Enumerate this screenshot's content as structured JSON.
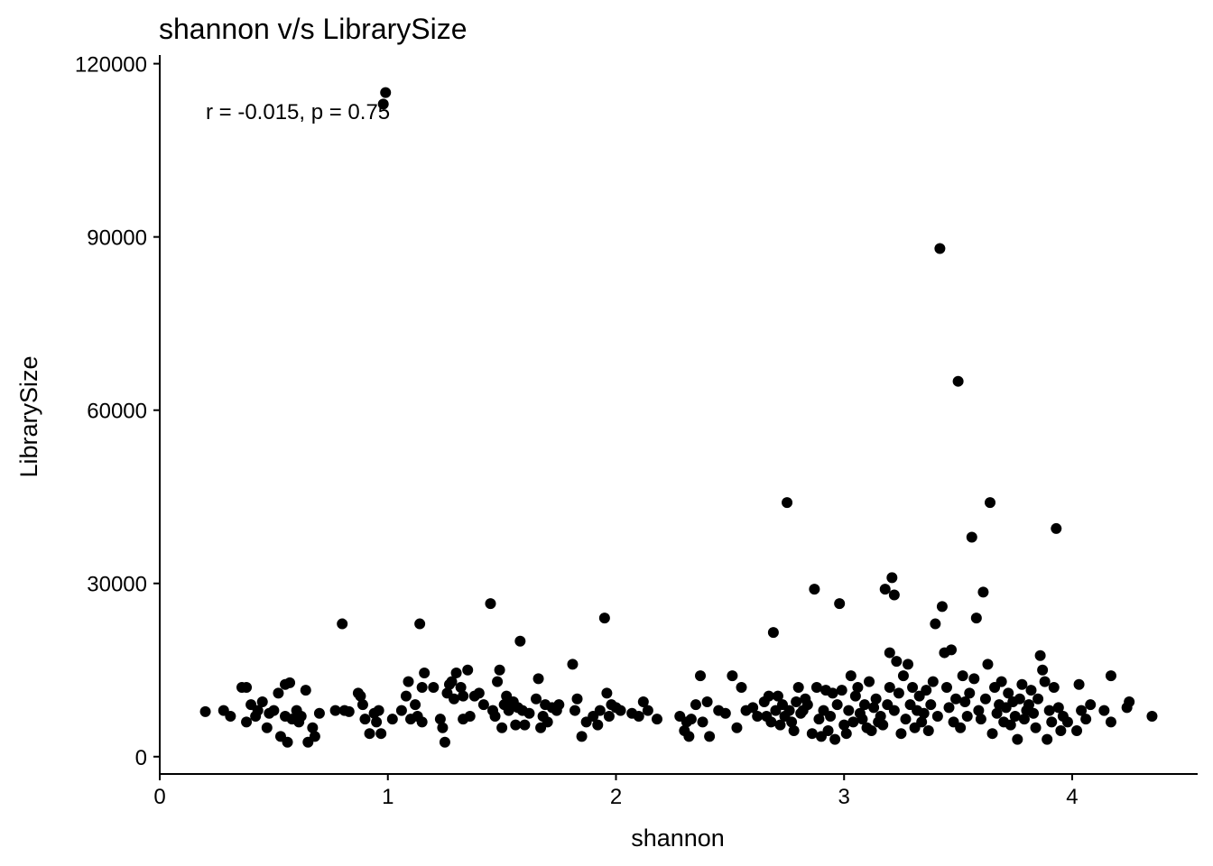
{
  "chart_data": {
    "type": "scatter",
    "title": "shannon v/s LibrarySize",
    "xlabel": "shannon",
    "ylabel": "LibrarySize",
    "xlim": [
      0,
      4.55
    ],
    "ylim": [
      -3000,
      121500
    ],
    "x_ticks": [
      0,
      1,
      2,
      3,
      4
    ],
    "y_ticks": [
      0,
      30000,
      60000,
      90000,
      120000
    ],
    "x_tick_labels": [
      "0",
      "1",
      "2",
      "3",
      "4"
    ],
    "y_tick_labels": [
      "0",
      "30000",
      "60000",
      "90000",
      "120000"
    ],
    "grid": false,
    "annotation": "r = -0.015, p = 0.75",
    "marker_color": "#000000",
    "points": [
      [
        0.2,
        7800
      ],
      [
        0.28,
        8000
      ],
      [
        0.31,
        7000
      ],
      [
        0.36,
        12000
      ],
      [
        0.38,
        12000
      ],
      [
        0.38,
        6000
      ],
      [
        0.4,
        9000
      ],
      [
        0.42,
        7000
      ],
      [
        0.43,
        8000
      ],
      [
        0.45,
        9500
      ],
      [
        0.47,
        5000
      ],
      [
        0.48,
        7500
      ],
      [
        0.5,
        8000
      ],
      [
        0.52,
        11000
      ],
      [
        0.53,
        3500
      ],
      [
        0.55,
        7000
      ],
      [
        0.55,
        12500
      ],
      [
        0.56,
        2500
      ],
      [
        0.57,
        12800
      ],
      [
        0.58,
        6500
      ],
      [
        0.6,
        8000
      ],
      [
        0.61,
        6000
      ],
      [
        0.62,
        7000
      ],
      [
        0.64,
        11500
      ],
      [
        0.65,
        2500
      ],
      [
        0.67,
        5000
      ],
      [
        0.68,
        3500
      ],
      [
        0.7,
        7500
      ],
      [
        0.77,
        8000
      ],
      [
        0.8,
        23000
      ],
      [
        0.81,
        8000
      ],
      [
        0.83,
        7800
      ],
      [
        0.87,
        11000
      ],
      [
        0.88,
        10500
      ],
      [
        0.89,
        9000
      ],
      [
        0.9,
        6500
      ],
      [
        0.92,
        4000
      ],
      [
        0.94,
        7500
      ],
      [
        0.95,
        6000
      ],
      [
        0.96,
        8000
      ],
      [
        0.97,
        4000
      ],
      [
        0.98,
        113000
      ],
      [
        0.99,
        115000
      ],
      [
        1.02,
        6500
      ],
      [
        1.06,
        8000
      ],
      [
        1.08,
        10500
      ],
      [
        1.09,
        13000
      ],
      [
        1.1,
        6500
      ],
      [
        1.12,
        9000
      ],
      [
        1.13,
        7000
      ],
      [
        1.14,
        23000
      ],
      [
        1.15,
        12000
      ],
      [
        1.15,
        6000
      ],
      [
        1.16,
        14500
      ],
      [
        1.2,
        12000
      ],
      [
        1.23,
        6500
      ],
      [
        1.24,
        5000
      ],
      [
        1.25,
        2500
      ],
      [
        1.26,
        11000
      ],
      [
        1.27,
        12500
      ],
      [
        1.28,
        13000
      ],
      [
        1.29,
        10000
      ],
      [
        1.3,
        14500
      ],
      [
        1.32,
        12000
      ],
      [
        1.33,
        10500
      ],
      [
        1.33,
        6500
      ],
      [
        1.35,
        15000
      ],
      [
        1.36,
        7000
      ],
      [
        1.38,
        10500
      ],
      [
        1.4,
        11000
      ],
      [
        1.42,
        9000
      ],
      [
        1.45,
        26500
      ],
      [
        1.46,
        8000
      ],
      [
        1.47,
        7000
      ],
      [
        1.48,
        13000
      ],
      [
        1.49,
        15000
      ],
      [
        1.5,
        5000
      ],
      [
        1.51,
        9000
      ],
      [
        1.52,
        10500
      ],
      [
        1.53,
        8000
      ],
      [
        1.55,
        9500
      ],
      [
        1.56,
        5500
      ],
      [
        1.57,
        8500
      ],
      [
        1.58,
        20000
      ],
      [
        1.59,
        8000
      ],
      [
        1.6,
        5500
      ],
      [
        1.62,
        7500
      ],
      [
        1.65,
        10000
      ],
      [
        1.66,
        13500
      ],
      [
        1.67,
        5000
      ],
      [
        1.68,
        7000
      ],
      [
        1.69,
        9000
      ],
      [
        1.7,
        6000
      ],
      [
        1.72,
        8500
      ],
      [
        1.74,
        8000
      ],
      [
        1.75,
        9000
      ],
      [
        1.81,
        16000
      ],
      [
        1.82,
        8000
      ],
      [
        1.83,
        10000
      ],
      [
        1.85,
        3500
      ],
      [
        1.87,
        6000
      ],
      [
        1.9,
        7000
      ],
      [
        1.92,
        5500
      ],
      [
        1.93,
        8000
      ],
      [
        1.95,
        24000
      ],
      [
        1.96,
        11000
      ],
      [
        1.97,
        7000
      ],
      [
        1.98,
        9000
      ],
      [
        2.0,
        8500
      ],
      [
        2.02,
        8000
      ],
      [
        2.07,
        7500
      ],
      [
        2.1,
        7000
      ],
      [
        2.12,
        9500
      ],
      [
        2.14,
        8000
      ],
      [
        2.18,
        6500
      ],
      [
        2.28,
        7000
      ],
      [
        2.3,
        4500
      ],
      [
        2.31,
        6000
      ],
      [
        2.32,
        3500
      ],
      [
        2.33,
        6500
      ],
      [
        2.35,
        9000
      ],
      [
        2.37,
        14000
      ],
      [
        2.38,
        6000
      ],
      [
        2.4,
        9500
      ],
      [
        2.41,
        3500
      ],
      [
        2.45,
        8000
      ],
      [
        2.48,
        7500
      ],
      [
        2.51,
        14000
      ],
      [
        2.53,
        5000
      ],
      [
        2.55,
        12000
      ],
      [
        2.57,
        8000
      ],
      [
        2.6,
        8500
      ],
      [
        2.62,
        7000
      ],
      [
        2.65,
        9500
      ],
      [
        2.66,
        7000
      ],
      [
        2.67,
        10500
      ],
      [
        2.68,
        6000
      ],
      [
        2.69,
        21500
      ],
      [
        2.7,
        8000
      ],
      [
        2.71,
        10500
      ],
      [
        2.72,
        5500
      ],
      [
        2.73,
        9000
      ],
      [
        2.74,
        7000
      ],
      [
        2.75,
        44000
      ],
      [
        2.76,
        8000
      ],
      [
        2.77,
        6000
      ],
      [
        2.78,
        4500
      ],
      [
        2.79,
        9500
      ],
      [
        2.8,
        12000
      ],
      [
        2.81,
        7500
      ],
      [
        2.82,
        8000
      ],
      [
        2.83,
        10000
      ],
      [
        2.84,
        9000
      ],
      [
        2.86,
        4000
      ],
      [
        2.87,
        29000
      ],
      [
        2.88,
        12000
      ],
      [
        2.89,
        6500
      ],
      [
        2.9,
        3500
      ],
      [
        2.91,
        8000
      ],
      [
        2.92,
        11500
      ],
      [
        2.93,
        4500
      ],
      [
        2.94,
        7000
      ],
      [
        2.95,
        11000
      ],
      [
        2.96,
        3000
      ],
      [
        2.97,
        9000
      ],
      [
        2.98,
        26500
      ],
      [
        2.99,
        11500
      ],
      [
        3.0,
        5500
      ],
      [
        3.01,
        4000
      ],
      [
        3.02,
        8000
      ],
      [
        3.03,
        14000
      ],
      [
        3.04,
        6000
      ],
      [
        3.05,
        10500
      ],
      [
        3.06,
        12000
      ],
      [
        3.07,
        7500
      ],
      [
        3.08,
        6500
      ],
      [
        3.09,
        9000
      ],
      [
        3.1,
        5000
      ],
      [
        3.11,
        13000
      ],
      [
        3.12,
        4500
      ],
      [
        3.13,
        8500
      ],
      [
        3.14,
        10000
      ],
      [
        3.15,
        6000
      ],
      [
        3.16,
        7000
      ],
      [
        3.17,
        5500
      ],
      [
        3.18,
        29000
      ],
      [
        3.19,
        9000
      ],
      [
        3.2,
        18000
      ],
      [
        3.2,
        12000
      ],
      [
        3.21,
        31000
      ],
      [
        3.22,
        28000
      ],
      [
        3.22,
        8000
      ],
      [
        3.23,
        16500
      ],
      [
        3.24,
        11000
      ],
      [
        3.25,
        4000
      ],
      [
        3.26,
        14000
      ],
      [
        3.27,
        6500
      ],
      [
        3.28,
        16000
      ],
      [
        3.29,
        9000
      ],
      [
        3.3,
        12000
      ],
      [
        3.31,
        5000
      ],
      [
        3.32,
        8000
      ],
      [
        3.33,
        10500
      ],
      [
        3.34,
        6000
      ],
      [
        3.35,
        7500
      ],
      [
        3.36,
        11500
      ],
      [
        3.37,
        4500
      ],
      [
        3.38,
        9000
      ],
      [
        3.39,
        13000
      ],
      [
        3.4,
        23000
      ],
      [
        3.41,
        7000
      ],
      [
        3.42,
        88000
      ],
      [
        3.43,
        26000
      ],
      [
        3.44,
        18000
      ],
      [
        3.45,
        12000
      ],
      [
        3.46,
        8500
      ],
      [
        3.47,
        18500
      ],
      [
        3.48,
        6000
      ],
      [
        3.49,
        10000
      ],
      [
        3.5,
        65000
      ],
      [
        3.51,
        5000
      ],
      [
        3.52,
        14000
      ],
      [
        3.53,
        9500
      ],
      [
        3.54,
        7000
      ],
      [
        3.55,
        11000
      ],
      [
        3.56,
        38000
      ],
      [
        3.57,
        13500
      ],
      [
        3.58,
        24000
      ],
      [
        3.59,
        8000
      ],
      [
        3.6,
        6500
      ],
      [
        3.61,
        28500
      ],
      [
        3.62,
        10000
      ],
      [
        3.63,
        16000
      ],
      [
        3.64,
        44000
      ],
      [
        3.65,
        4000
      ],
      [
        3.66,
        12000
      ],
      [
        3.67,
        7500
      ],
      [
        3.68,
        9000
      ],
      [
        3.69,
        13000
      ],
      [
        3.7,
        6000
      ],
      [
        3.71,
        8500
      ],
      [
        3.72,
        11000
      ],
      [
        3.73,
        5500
      ],
      [
        3.74,
        9500
      ],
      [
        3.75,
        7000
      ],
      [
        3.76,
        3000
      ],
      [
        3.77,
        10000
      ],
      [
        3.78,
        12500
      ],
      [
        3.79,
        6500
      ],
      [
        3.8,
        8000
      ],
      [
        3.81,
        9000
      ],
      [
        3.82,
        11500
      ],
      [
        3.83,
        7500
      ],
      [
        3.84,
        5000
      ],
      [
        3.85,
        10000
      ],
      [
        3.86,
        17500
      ],
      [
        3.87,
        15000
      ],
      [
        3.88,
        13000
      ],
      [
        3.89,
        3000
      ],
      [
        3.9,
        8000
      ],
      [
        3.91,
        6000
      ],
      [
        3.92,
        12000
      ],
      [
        3.93,
        39500
      ],
      [
        3.94,
        8500
      ],
      [
        3.95,
        4500
      ],
      [
        3.96,
        7000
      ],
      [
        3.98,
        6000
      ],
      [
        4.02,
        4500
      ],
      [
        4.03,
        12500
      ],
      [
        4.04,
        8000
      ],
      [
        4.06,
        6500
      ],
      [
        4.08,
        9000
      ],
      [
        4.14,
        8000
      ],
      [
        4.17,
        14000
      ],
      [
        4.17,
        6000
      ],
      [
        4.24,
        8500
      ],
      [
        4.25,
        9500
      ],
      [
        4.35,
        7000
      ]
    ]
  }
}
